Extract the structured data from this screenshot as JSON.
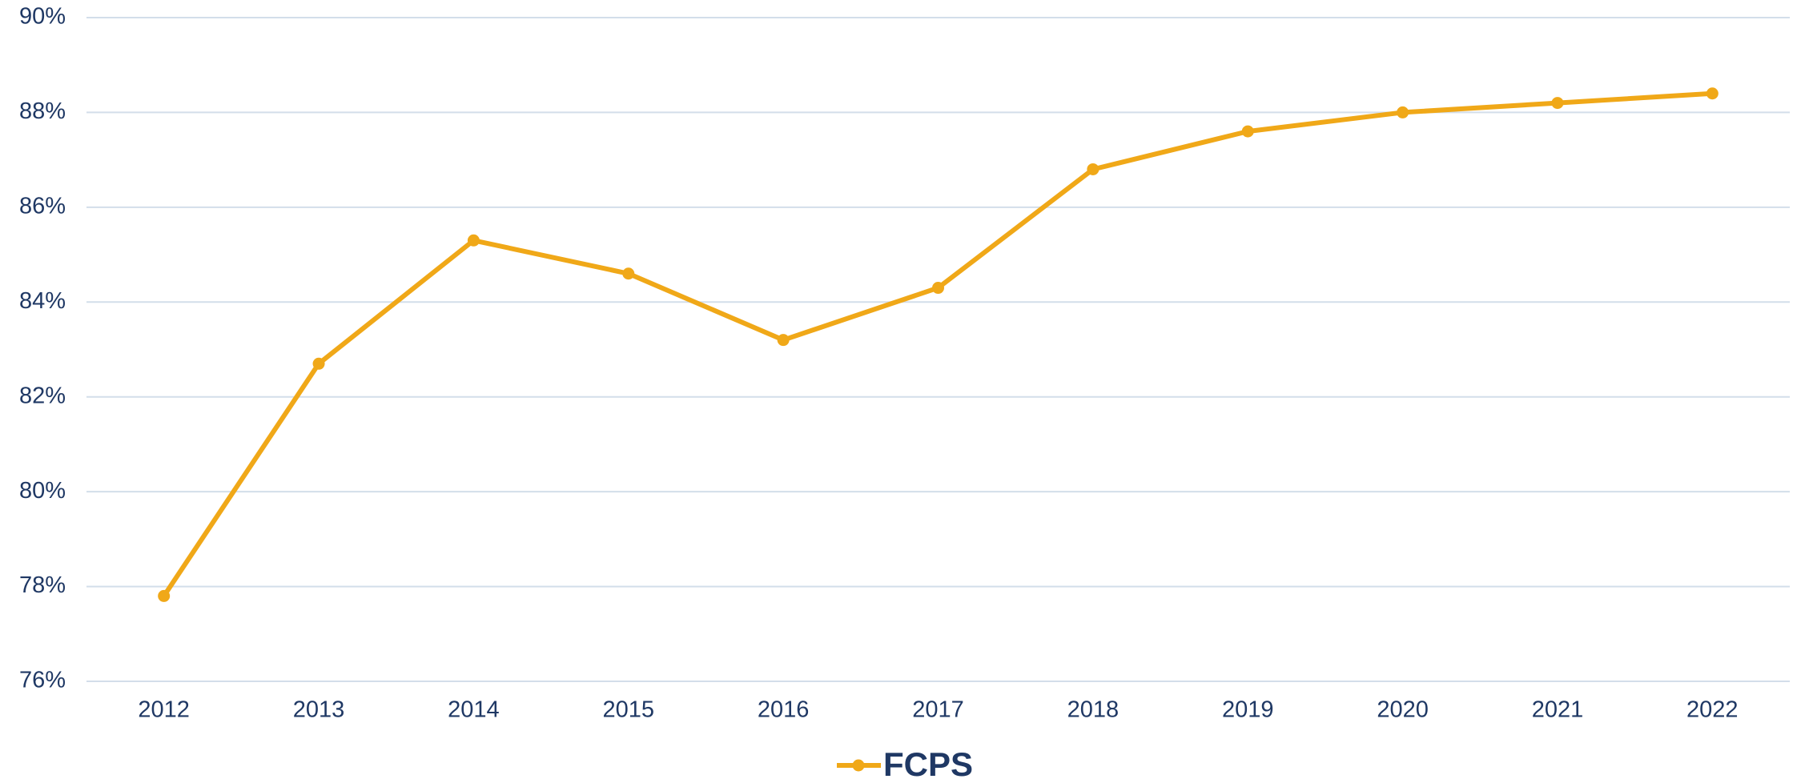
{
  "chart_data": {
    "type": "line",
    "categories": [
      "2012",
      "2013",
      "2014",
      "2015",
      "2016",
      "2017",
      "2018",
      "2019",
      "2020",
      "2021",
      "2022"
    ],
    "series": [
      {
        "name": "FCPS",
        "color": "#f0a818",
        "values": [
          77.8,
          82.7,
          85.3,
          84.6,
          83.2,
          84.3,
          86.8,
          87.6,
          88.0,
          88.2,
          88.4
        ]
      }
    ],
    "ylim": [
      76,
      90
    ],
    "yticks": [
      {
        "value": 76,
        "label": "76%"
      },
      {
        "value": 78,
        "label": "78%"
      },
      {
        "value": 80,
        "label": "80%"
      },
      {
        "value": 82,
        "label": "82%"
      },
      {
        "value": 84,
        "label": "84%"
      },
      {
        "value": 86,
        "label": "86%"
      },
      {
        "value": 88,
        "label": "88%"
      },
      {
        "value": 90,
        "label": "90%"
      }
    ],
    "grid": true,
    "legend": "bottom"
  }
}
